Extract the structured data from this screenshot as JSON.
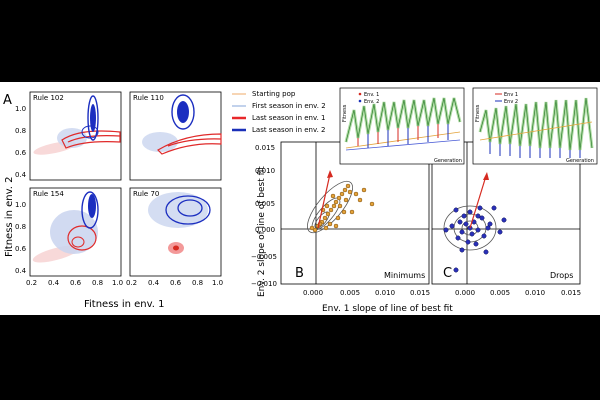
{
  "figure": {
    "panel_labels": {
      "a": "A",
      "b": "B",
      "c": "C"
    },
    "panel_a": {
      "ylabel": "Fitness in env. 2",
      "xlabel": "Fitness in env. 1",
      "x_ticks": [
        "0.2",
        "0.4",
        "0.6",
        "0.8",
        "1.0"
      ],
      "y_ticks": [
        "0.4",
        "0.6",
        "0.8",
        "1.0"
      ],
      "subplots": [
        {
          "title": "Rule 102"
        },
        {
          "title": "Rule 110"
        },
        {
          "title": "Rule 154"
        },
        {
          "title": "Rule 70"
        }
      ]
    },
    "legend": [
      {
        "label": "Starting pop",
        "color": "#f4c79a"
      },
      {
        "label": "First season in env. 2",
        "color": "#aec2e6"
      },
      {
        "label": "Last season in env. 1",
        "color": "#e8282b"
      },
      {
        "label": "Last season in env. 2",
        "color": "#1a2fb8"
      }
    ],
    "panel_bc": {
      "ylabel": "Env. 2 slope of line of best fit",
      "xlabel": "Env. 1 slope of line of best fit",
      "y_ticks": [
        "0.015",
        "0.010",
        "0.005",
        "0.000",
        "−0.005",
        "−0.010"
      ],
      "x_ticks_b": [
        "0.000",
        "0.005",
        "0.010",
        "0.015"
      ],
      "x_ticks_c": [
        "0.000",
        "0.005",
        "0.010",
        "0.015"
      ],
      "label_b": "Minimums",
      "label_c": "Drops"
    },
    "insets": [
      {
        "xlabel": "Generation",
        "ylabel": "Fitness",
        "legend": [
          "Env. 1",
          "Env. 2"
        ]
      },
      {
        "xlabel": "Generation",
        "ylabel": "Fitness",
        "legend": [
          "Env 1",
          "Env 2"
        ]
      }
    ],
    "colors": {
      "orange": "#e3a33b",
      "blue": "#2a30b8",
      "red": "#d62a20",
      "green": "#6dbf5a"
    }
  }
}
